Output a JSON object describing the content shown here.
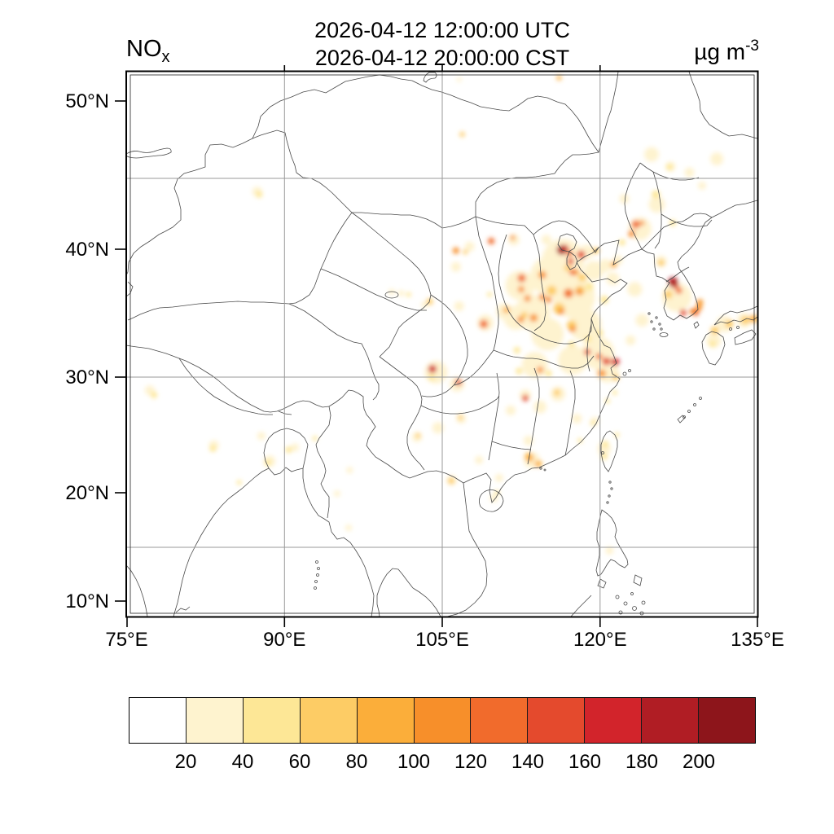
{
  "header": {
    "title_line1": "2026-04-12 12:00:00 UTC",
    "title_line2": "2026-04-12 20:00:00 CST",
    "species": {
      "text": "NO",
      "subscript": "x"
    },
    "units": {
      "text": "µg m",
      "exponent": "-3"
    }
  },
  "map": {
    "x_axis": {
      "ticks": [
        "75°E",
        "90°E",
        "105°E",
        "120°E",
        "135°E"
      ]
    },
    "y_axis": {
      "ticks": [
        "50°N",
        "40°N",
        "30°N",
        "20°N",
        "10°N"
      ]
    },
    "gridline_color": "#999999",
    "coastline_color": "#4a4a4a"
  },
  "colorbar": {
    "labels": [
      "20",
      "40",
      "60",
      "80",
      "100",
      "120",
      "140",
      "160",
      "180",
      "200"
    ],
    "colors": [
      "#FFFFFF",
      "#FEF3CF",
      "#FDE796",
      "#FDCC65",
      "#FBAE3A",
      "#F78F2A",
      "#F16B2C",
      "#E44A2D",
      "#D2242B",
      "#B01D24",
      "#8D151B"
    ]
  },
  "chart_data": {
    "type": "heatmap",
    "title": "2026-04-12 12:00:00 UTC / 2026-04-12 20:00:00 CST",
    "variable": "NOx",
    "units": "µg m-3",
    "projection": "mercator",
    "lon_range": [
      75,
      135
    ],
    "lat_range": [
      8.5,
      51.8
    ],
    "grid_lons": [
      90,
      105,
      120
    ],
    "grid_lats": [
      15,
      30,
      45
    ],
    "levels": [
      20,
      40,
      60,
      80,
      100,
      120,
      140,
      160,
      180,
      200
    ],
    "palette": [
      "#FFFFFF",
      "#FEF3CF",
      "#FDE796",
      "#FDCC65",
      "#FBAE3A",
      "#F78F2A",
      "#F16B2C",
      "#E44A2D",
      "#D2242B",
      "#B01D24",
      "#8D151B"
    ],
    "heat_points_format": "[lon, lat, value_ug_m3, blob_radius_px]",
    "heat_points": [
      [
        116.5,
        39.2,
        30,
        26
      ],
      [
        115.2,
        38,
        30,
        24
      ],
      [
        117.5,
        36.4,
        30,
        26
      ],
      [
        113.6,
        35.2,
        30,
        22
      ],
      [
        112.4,
        37.3,
        30,
        18
      ],
      [
        118.6,
        34.2,
        30,
        20
      ],
      [
        115,
        33.5,
        30,
        20
      ],
      [
        119.8,
        32,
        30,
        20
      ],
      [
        117.4,
        31.4,
        30,
        18
      ],
      [
        113.8,
        31,
        30,
        16
      ],
      [
        120.7,
        30.5,
        30,
        14
      ],
      [
        119.4,
        38.4,
        30,
        12
      ],
      [
        120.5,
        38.8,
        30,
        8
      ],
      [
        123.8,
        41.5,
        30,
        14
      ],
      [
        125.4,
        43.2,
        30,
        10
      ],
      [
        124.9,
        46.6,
        30,
        9
      ],
      [
        131.1,
        46.3,
        30,
        8
      ],
      [
        128.5,
        45.4,
        30,
        6
      ],
      [
        122.3,
        43.6,
        30,
        6
      ],
      [
        127.3,
        36.4,
        30,
        18
      ],
      [
        125.8,
        39.1,
        30,
        7
      ],
      [
        131.8,
        34.3,
        30,
        10
      ],
      [
        133.7,
        34.6,
        30,
        9
      ],
      [
        130.8,
        33,
        30,
        9
      ],
      [
        104.4,
        30.4,
        30,
        14
      ],
      [
        106.4,
        29.4,
        30,
        9
      ],
      [
        113.5,
        22.9,
        30,
        10
      ],
      [
        120.4,
        23.9,
        30,
        8
      ],
      [
        102.6,
        24.9,
        30,
        6
      ],
      [
        104.6,
        25.7,
        30,
        7
      ],
      [
        106.8,
        26.5,
        30,
        6
      ],
      [
        88.6,
        22.8,
        30,
        7
      ],
      [
        83.3,
        24.2,
        30,
        6
      ],
      [
        87.4,
        44.1,
        30,
        6
      ],
      [
        112,
        34.8,
        30,
        15
      ],
      [
        110.9,
        35.3,
        30,
        10
      ],
      [
        109.1,
        34.4,
        30,
        10
      ],
      [
        123.3,
        37,
        30,
        9
      ],
      [
        121.2,
        37.8,
        30,
        8
      ],
      [
        124,
        34.6,
        30,
        8
      ],
      [
        122.9,
        33,
        30,
        6
      ],
      [
        116,
        28.6,
        30,
        9
      ],
      [
        112.9,
        28.5,
        30,
        7
      ],
      [
        114.3,
        27.5,
        30,
        8
      ],
      [
        111.5,
        27.2,
        30,
        6
      ],
      [
        117.8,
        26.5,
        30,
        6
      ],
      [
        119.5,
        26.3,
        30,
        5
      ],
      [
        113.2,
        24.6,
        30,
        6
      ],
      [
        108.5,
        22.9,
        30,
        5
      ],
      [
        110.4,
        21.3,
        30,
        5
      ],
      [
        109.9,
        19.5,
        30,
        5
      ],
      [
        106.6,
        35.7,
        30,
        6
      ],
      [
        95,
        19.9,
        30,
        4
      ],
      [
        96.1,
        16.8,
        30,
        4
      ],
      [
        96.2,
        22,
        30,
        4
      ],
      [
        105.9,
        21.1,
        30,
        6
      ],
      [
        120.9,
        14.7,
        30,
        5
      ],
      [
        106.9,
        47.9,
        30,
        4
      ],
      [
        106.6,
        51.3,
        30,
        3
      ],
      [
        100.2,
        36.8,
        30,
        4
      ],
      [
        106.3,
        38.7,
        30,
        6
      ],
      [
        107.6,
        40.2,
        30,
        6
      ],
      [
        111.8,
        40.7,
        30,
        7
      ],
      [
        114.9,
        40.7,
        30,
        6
      ],
      [
        118.7,
        39.8,
        30,
        9
      ],
      [
        121.7,
        39.2,
        30,
        6
      ],
      [
        126.7,
        45.8,
        30,
        6
      ],
      [
        129.7,
        44.5,
        30,
        5
      ],
      [
        91,
        24,
        30,
        5
      ],
      [
        87.8,
        25,
        30,
        5
      ],
      [
        77.2,
        28.9,
        30,
        6
      ],
      [
        101.1,
        36.7,
        30,
        4
      ],
      [
        103.3,
        35.8,
        30,
        4
      ],
      [
        117,
        36.7,
        90,
        6
      ],
      [
        118.1,
        36.9,
        70,
        6
      ],
      [
        120.4,
        36.2,
        50,
        5
      ],
      [
        117.3,
        34.2,
        70,
        6
      ],
      [
        113.7,
        34.8,
        90,
        5
      ],
      [
        114.5,
        38.1,
        90,
        5
      ],
      [
        116.1,
        35.5,
        70,
        7
      ],
      [
        115.4,
        36.9,
        70,
        6
      ],
      [
        118.3,
        37.9,
        70,
        5
      ],
      [
        119,
        37.2,
        50,
        5
      ],
      [
        121.3,
        38.85,
        90,
        4
      ],
      [
        122.1,
        40.5,
        50,
        4
      ],
      [
        123,
        41.1,
        90,
        4
      ],
      [
        125.3,
        43.9,
        50,
        5
      ],
      [
        126.6,
        45.75,
        50,
        4
      ],
      [
        126.9,
        41.9,
        50,
        4
      ],
      [
        125.8,
        39,
        70,
        4
      ],
      [
        129.5,
        36,
        90,
        4
      ],
      [
        126.5,
        36.6,
        70,
        5
      ],
      [
        130.9,
        33.8,
        70,
        5
      ],
      [
        132.3,
        34.3,
        70,
        5
      ],
      [
        133.8,
        34.6,
        70,
        5
      ],
      [
        134.6,
        34.7,
        90,
        5
      ],
      [
        130.7,
        32.7,
        50,
        4
      ],
      [
        120.2,
        30.3,
        90,
        5
      ],
      [
        121.5,
        29.95,
        70,
        4
      ],
      [
        121.4,
        28.7,
        50,
        3
      ],
      [
        120.7,
        28,
        50,
        3
      ],
      [
        115.9,
        28.7,
        70,
        4
      ],
      [
        113.2,
        23.2,
        70,
        5
      ],
      [
        114.2,
        22.6,
        70,
        4
      ],
      [
        105.85,
        21.05,
        70,
        4
      ],
      [
        103.8,
        36.05,
        70,
        4
      ],
      [
        101.8,
        36.6,
        50,
        3
      ],
      [
        87.6,
        43.9,
        50,
        4
      ],
      [
        107.2,
        39.8,
        70,
        3
      ],
      [
        88.4,
        22.65,
        50,
        4
      ],
      [
        90.4,
        23.8,
        50,
        4
      ],
      [
        83.2,
        23.9,
        50,
        4
      ],
      [
        85.7,
        20.9,
        50,
        3
      ],
      [
        92.9,
        24.8,
        50,
        3
      ],
      [
        77.6,
        28.5,
        50,
        4
      ],
      [
        120.5,
        24.3,
        50,
        4
      ],
      [
        120.4,
        23.2,
        50,
        4
      ],
      [
        121.6,
        25.1,
        50,
        3
      ],
      [
        118.1,
        24.6,
        50,
        3
      ],
      [
        119.3,
        26.1,
        50,
        3
      ],
      [
        102.7,
        25.05,
        70,
        3
      ],
      [
        106.7,
        26.6,
        70,
        3
      ],
      [
        104,
        30,
        50,
        4
      ],
      [
        112.1,
        32.2,
        50,
        4
      ],
      [
        112.3,
        30.5,
        50,
        4
      ],
      [
        115.1,
        30.3,
        50,
        4
      ],
      [
        117.3,
        32.7,
        50,
        4
      ],
      [
        118.9,
        33.1,
        50,
        4
      ],
      [
        120,
        33.6,
        50,
        4
      ],
      [
        110.2,
        20,
        50,
        3
      ],
      [
        117.7,
        38.3,
        90,
        4
      ],
      [
        116.9,
        38.6,
        70,
        4
      ],
      [
        119.6,
        39.9,
        70,
        4
      ],
      [
        112.8,
        35,
        70,
        4
      ],
      [
        111.1,
        35.4,
        90,
        4
      ],
      [
        109.5,
        36.6,
        50,
        3
      ],
      [
        116.35,
        39.95,
        185,
        6
      ],
      [
        116.7,
        40.1,
        150,
        4
      ],
      [
        117.1,
        39.7,
        130,
        4
      ],
      [
        118.2,
        39.6,
        150,
        5
      ],
      [
        117.2,
        39.1,
        150,
        4
      ],
      [
        117.4,
        38.3,
        130,
        4
      ],
      [
        114.55,
        38.05,
        110,
        4
      ],
      [
        114.5,
        36.4,
        110,
        4
      ],
      [
        112.55,
        37.85,
        130,
        5
      ],
      [
        112.5,
        37,
        110,
        4
      ],
      [
        113.1,
        36.3,
        110,
        4
      ],
      [
        112.45,
        34.65,
        110,
        4
      ],
      [
        113.65,
        34.75,
        110,
        4
      ],
      [
        108.95,
        34.3,
        130,
        5
      ],
      [
        109.65,
        40.6,
        130,
        4
      ],
      [
        111.7,
        40.85,
        110,
        3
      ],
      [
        106.3,
        39.9,
        110,
        4
      ],
      [
        104.07,
        30.67,
        175,
        5
      ],
      [
        106.55,
        29.57,
        150,
        4
      ],
      [
        114.3,
        30.6,
        110,
        4
      ],
      [
        112.9,
        28.25,
        150,
        4
      ],
      [
        121.45,
        31.25,
        170,
        5
      ],
      [
        120.6,
        31.3,
        150,
        5
      ],
      [
        118.8,
        32.05,
        150,
        4
      ],
      [
        119.9,
        31.7,
        130,
        4
      ],
      [
        120.1,
        30.35,
        110,
        4
      ],
      [
        117,
        36.68,
        130,
        5
      ],
      [
        118,
        36.8,
        110,
        4
      ],
      [
        116.3,
        35.3,
        110,
        4
      ],
      [
        115.1,
        36.2,
        110,
        4
      ],
      [
        117.4,
        33.9,
        110,
        4
      ],
      [
        123.4,
        41.8,
        130,
        5
      ],
      [
        123,
        41.15,
        110,
        4
      ],
      [
        124,
        41.9,
        110,
        3
      ],
      [
        126.95,
        37.55,
        185,
        6
      ],
      [
        127.15,
        37.3,
        150,
        4
      ],
      [
        127.5,
        36.9,
        130,
        4
      ],
      [
        127.9,
        35.2,
        150,
        4
      ],
      [
        129.1,
        35.2,
        130,
        4
      ],
      [
        129.4,
        35.6,
        110,
        4
      ],
      [
        129.45,
        36.05,
        110,
        3
      ],
      [
        128.8,
        35.3,
        110,
        4
      ],
      [
        116.1,
        51.4,
        90,
        3
      ],
      [
        106.9,
        47.9,
        70,
        3
      ],
      [
        113.3,
        23.1,
        90,
        5
      ],
      [
        114.1,
        22.55,
        90,
        4
      ]
    ]
  }
}
